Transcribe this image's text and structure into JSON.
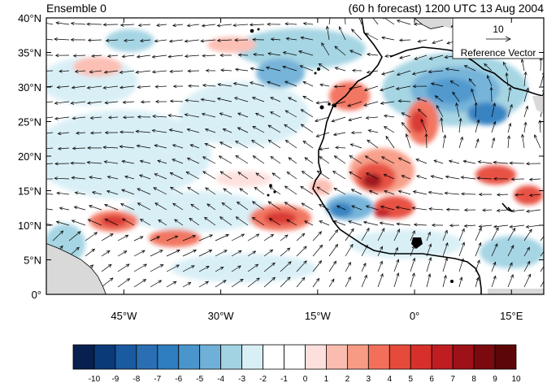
{
  "header": {
    "left_title": "Ensemble 0",
    "right_title": "(60 h forecast) 1200 UTC 13 Aug 2004"
  },
  "map": {
    "lat_range": [
      0,
      40
    ],
    "lon_range": [
      -57,
      20
    ],
    "lat_labels": [
      "0°",
      "5°N",
      "10°N",
      "15°N",
      "20°N",
      "25°N",
      "30°N",
      "35°N",
      "40°N"
    ],
    "lat_values": [
      0,
      5,
      10,
      15,
      20,
      25,
      30,
      35,
      40
    ],
    "lon_labels": [
      "45°W",
      "30°W",
      "15°W",
      "0°",
      "15°E"
    ],
    "lon_values": [
      -45,
      -30,
      -15,
      0,
      15
    ],
    "reference_vector": {
      "magnitude": "10",
      "label": "Reference Vector"
    },
    "colorbar": {
      "labels": [
        "-10",
        "-9",
        "-8",
        "-7",
        "-6",
        "-5",
        "-4",
        "-3",
        "-2",
        "-1",
        "0",
        "1",
        "2",
        "3",
        "4",
        "5",
        "6",
        "7",
        "8",
        "9",
        "10"
      ],
      "colors": [
        "#08204f",
        "#0b3a78",
        "#1a5aa0",
        "#2a6fb3",
        "#2f7ebf",
        "#4a95cc",
        "#6fb0d8",
        "#a2d3e2",
        "#d8eff6",
        "#ffffff",
        "#ffffff",
        "#fde0dd",
        "#fbbcb0",
        "#f79b85",
        "#f2705a",
        "#e64a3a",
        "#d7302b",
        "#bf1d22",
        "#9e1118",
        "#7a0a10",
        "#5c0608"
      ]
    }
  }
}
